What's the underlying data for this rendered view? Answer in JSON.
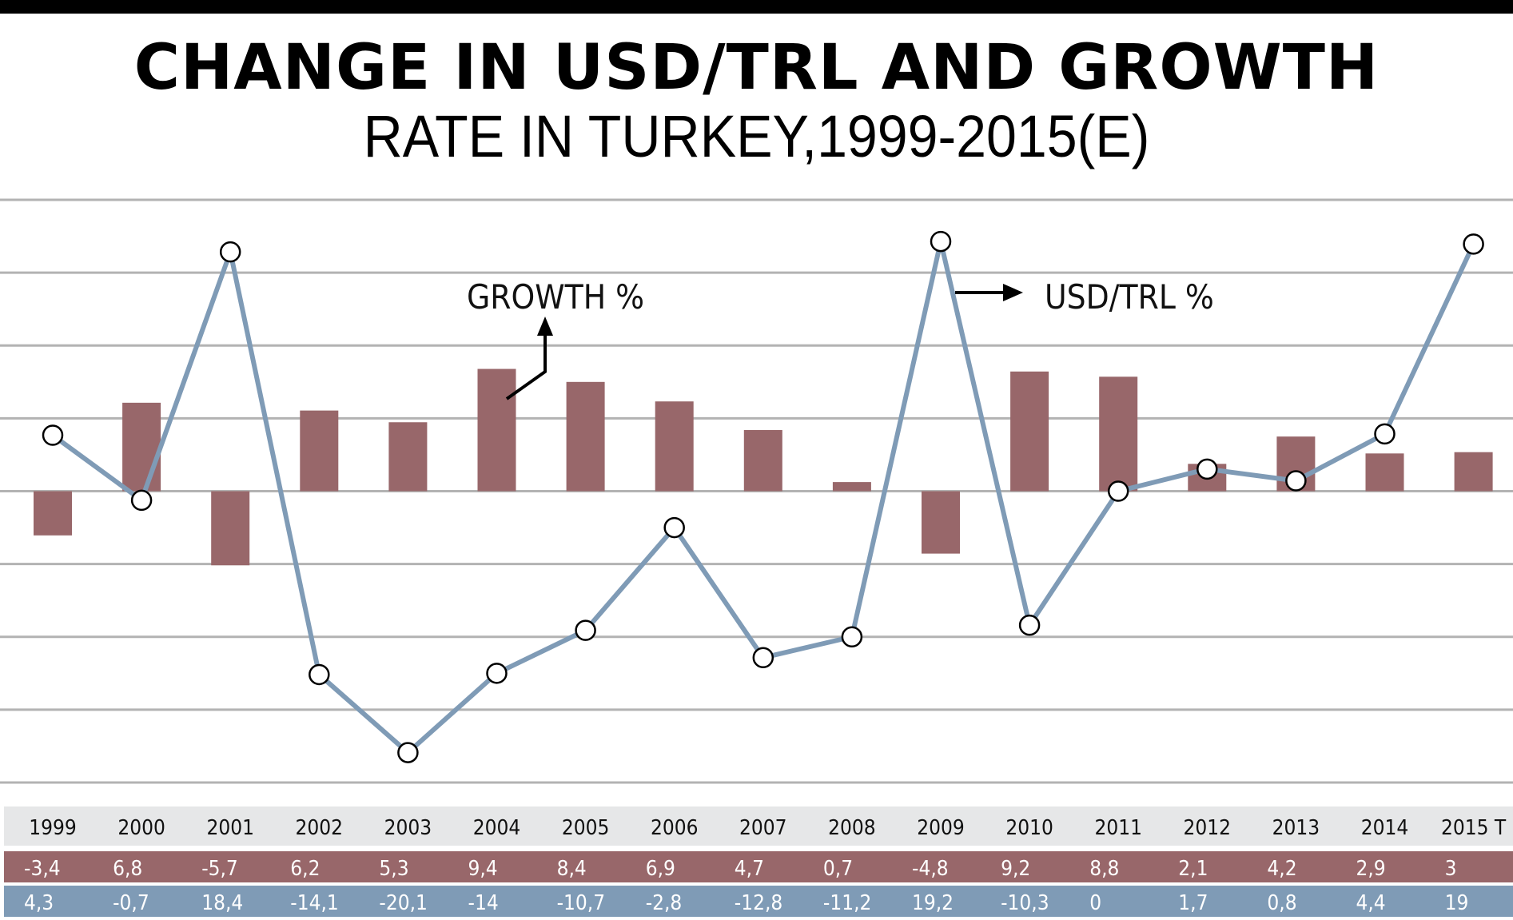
{
  "title": "CHANGE IN USD/TRL AND GROWTH",
  "subtitle": "RATE IN TURKEY,1999-2015(E)",
  "chart_data": {
    "type": "bar+line",
    "title": "CHANGE IN USD/TRL AND GROWTH RATE IN TURKEY,1999-2015(E)",
    "categories": [
      "1999",
      "2000",
      "2001",
      "2002",
      "2003",
      "2004",
      "2005",
      "2006",
      "2007",
      "2008",
      "2009",
      "2010",
      "2011",
      "2012",
      "2013",
      "2014",
      "2015 T"
    ],
    "series": [
      {
        "name": "GROWTH %",
        "type": "bar",
        "color": "#98676a",
        "values": [
          -3.4,
          6.8,
          -5.7,
          6.2,
          5.3,
          9.4,
          8.4,
          6.9,
          4.7,
          0.7,
          -4.8,
          9.2,
          8.8,
          2.1,
          4.2,
          2.9,
          3
        ],
        "labels": [
          "-3,4",
          "6,8",
          "-5,7",
          "6,2",
          "5,3",
          "9,4",
          "8,4",
          "6,9",
          "4,7",
          "0,7",
          "-4,8",
          "9,2",
          "8,8",
          "2,1",
          "4,2",
          "2,9",
          "3"
        ]
      },
      {
        "name": "USD/TRL %",
        "type": "line",
        "color": "#7f9bb6",
        "values": [
          4.3,
          -0.7,
          18.4,
          -14.1,
          -20.1,
          -14,
          -10.7,
          -2.8,
          -12.8,
          -11.2,
          19.2,
          -10.3,
          0,
          1.7,
          0.8,
          4.4,
          19
        ],
        "labels": [
          "4,3",
          "-0,7",
          "18,4",
          "-14,1",
          "-20,1",
          "-14",
          "-10,7",
          "-2,8",
          "-12,8",
          "-11,2",
          "19,2",
          "-10,3",
          "0",
          "1,7",
          "0,8",
          "4,4",
          "19"
        ]
      }
    ],
    "ylim": [
      -22.4,
      22.4
    ],
    "grid": true,
    "annotations": [
      "GROWTH %",
      "USD/TRL %"
    ]
  }
}
